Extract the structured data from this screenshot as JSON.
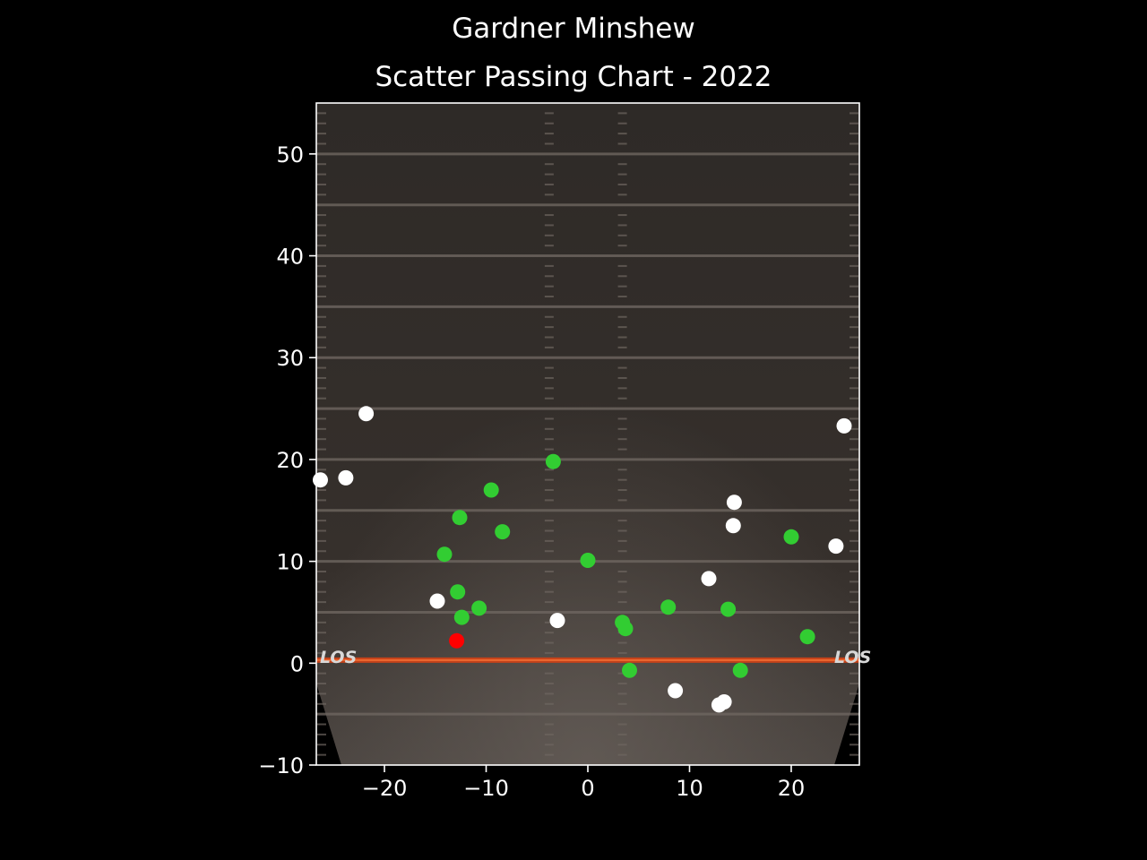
{
  "chart_data": {
    "type": "scatter",
    "suptitle": "Gardner Minshew",
    "title": "Scatter Passing Chart - 2022",
    "xlabel": "",
    "ylabel": "",
    "xlim": [
      -26.7,
      26.7
    ],
    "ylim": [
      -10,
      55
    ],
    "xticks": [
      -20,
      -10,
      0,
      10,
      20
    ],
    "yticks": [
      -10,
      0,
      10,
      20,
      30,
      40,
      50
    ],
    "xtick_labels": [
      "−20",
      "−10",
      "0",
      "10",
      "20"
    ],
    "ytick_labels": [
      "−10",
      "0",
      "10",
      "20",
      "30",
      "40",
      "50"
    ],
    "grid": false,
    "legend": "none",
    "background": "football field",
    "field_labels": [
      "LOS",
      "LOS"
    ],
    "series": [
      {
        "color": "#32cd32",
        "points": [
          [
            -3.4,
            19.8
          ],
          [
            -9.5,
            17.0
          ],
          [
            -12.6,
            14.3
          ],
          [
            -8.4,
            12.9
          ],
          [
            -14.1,
            10.7
          ],
          [
            0.0,
            10.1
          ],
          [
            -12.8,
            7.0
          ],
          [
            -10.7,
            5.4
          ],
          [
            -12.4,
            4.5
          ],
          [
            3.4,
            4.0
          ],
          [
            3.7,
            3.4
          ],
          [
            7.9,
            5.5
          ],
          [
            13.8,
            5.3
          ],
          [
            20.0,
            12.4
          ],
          [
            21.6,
            2.6
          ],
          [
            4.1,
            -0.7
          ],
          [
            15.0,
            -0.7
          ]
        ]
      },
      {
        "color": "#ffffff",
        "points": [
          [
            -21.8,
            24.5
          ],
          [
            -26.3,
            18.0
          ],
          [
            -23.8,
            18.2
          ],
          [
            -14.8,
            6.1
          ],
          [
            -3.0,
            4.2
          ],
          [
            14.4,
            15.8
          ],
          [
            14.3,
            13.5
          ],
          [
            11.9,
            8.3
          ],
          [
            24.4,
            11.5
          ],
          [
            25.2,
            23.3
          ],
          [
            8.6,
            -2.7
          ],
          [
            13.4,
            -3.8
          ],
          [
            12.9,
            -4.1
          ]
        ]
      },
      {
        "color": "#ff0000",
        "points": [
          [
            -12.9,
            2.2
          ]
        ]
      }
    ]
  }
}
